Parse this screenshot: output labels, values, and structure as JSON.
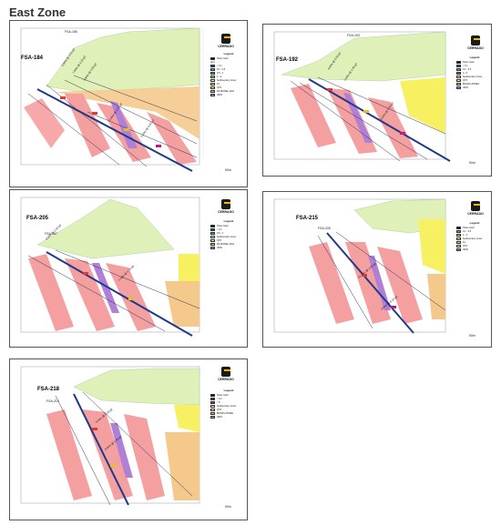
{
  "heading": "East Zone",
  "brand": "CERRADO",
  "legend": {
    "title": "Legend",
    "holes_label": "Holes Gold",
    "ppm_label": "ppm",
    "ranges": [
      "< 0.1",
      "0.1 - 0.5",
      "0.5 - 1",
      "1 - 3",
      "3 - 5",
      "> 5"
    ],
    "range_colors": [
      "#1f4e9c",
      "#3bb3c9",
      "#4caf50",
      "#e7c31a",
      "#e53935",
      "#c2188b"
    ],
    "sediments_label": "Sediments",
    "sediment_cover": "Sedimentary Cover",
    "geo_label": "Geological Model",
    "f1": "F1",
    "qtz": "QTZ",
    "dk_model": "DK MODEL 2021",
    "bonas": "BONAS ZONES",
    "vein": "VEIN"
  },
  "panels": [
    {
      "id": "FSA-184",
      "collar": "FSA-186"
    },
    {
      "id": "FSA-192",
      "collar": "FSA-193"
    },
    {
      "id": "FSA-205",
      "collar": "FSA-187"
    },
    {
      "id": "FSA-215",
      "collar": "FSA-205"
    },
    {
      "id": "FSA-218",
      "collar": "FSA-214"
    }
  ],
  "scale_label": "50m"
}
